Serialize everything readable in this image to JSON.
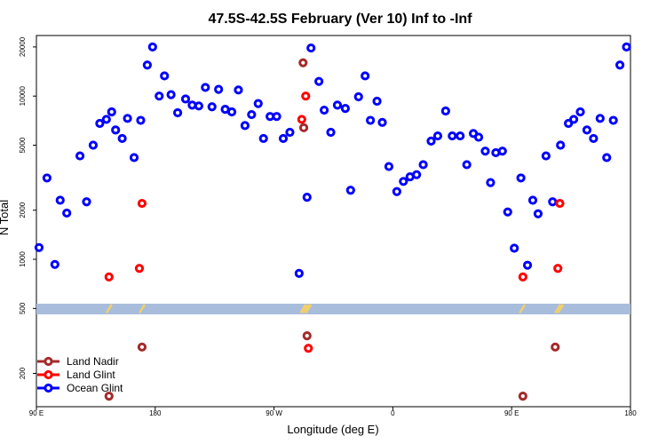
{
  "chart_data": {
    "type": "scatter",
    "title": "47.5S-42.5S February (Ver 10)   Inf to -Inf",
    "xlabel": "Longitude (deg E)",
    "ylabel": "N Total",
    "y_scale": "log",
    "grid": false,
    "legend_position": "bottom-left",
    "x_ticks": [
      {
        "value": 90,
        "label": "90 E"
      },
      {
        "value": 180,
        "label": "180"
      },
      {
        "value": 270,
        "label": "90 W"
      },
      {
        "value": 360,
        "label": "0"
      },
      {
        "value": 450,
        "label": "90 E"
      },
      {
        "value": 540,
        "label": "180"
      }
    ],
    "y_ticks": [
      {
        "value": 200,
        "label": "200"
      },
      {
        "value": 500,
        "label": "500"
      },
      {
        "value": 1000,
        "label": "1000"
      },
      {
        "value": 2000,
        "label": "2000"
      },
      {
        "value": 5000,
        "label": "5000"
      },
      {
        "value": 10000,
        "label": "10000"
      },
      {
        "value": 20000,
        "label": "20000"
      }
    ],
    "series": [
      {
        "name": "Land Nadir",
        "color": "#a52a2a",
        "points": [
          [
            145,
            145
          ],
          [
            170,
            290
          ],
          [
            292,
            16000
          ],
          [
            292.5,
            6400
          ],
          [
            295,
            340
          ],
          [
            458.5,
            145
          ],
          [
            483,
            290
          ]
        ]
      },
      {
        "name": "Land Glint",
        "color": "#ff0000",
        "points": [
          [
            145,
            780
          ],
          [
            168,
            880
          ],
          [
            170,
            2200
          ],
          [
            291,
            7200
          ],
          [
            294,
            10000
          ],
          [
            296,
            285
          ],
          [
            458.5,
            780
          ],
          [
            485,
            880
          ],
          [
            486.5,
            2200
          ]
        ]
      },
      {
        "name": "Ocean Glint",
        "color": "#0000ff",
        "points": [
          [
            92,
            1180
          ],
          [
            98,
            3150
          ],
          [
            104,
            930
          ],
          [
            108,
            2300
          ],
          [
            113,
            1920
          ],
          [
            123,
            4300
          ],
          [
            128,
            2250
          ],
          [
            133,
            5000
          ],
          [
            138,
            6800
          ],
          [
            143,
            7200
          ],
          [
            147,
            8000
          ],
          [
            150,
            6200
          ],
          [
            155,
            5500
          ],
          [
            159,
            7300
          ],
          [
            164,
            4200
          ],
          [
            169,
            7100
          ],
          [
            174,
            15500
          ],
          [
            178,
            20000
          ],
          [
            183,
            10000
          ],
          [
            187,
            13300
          ],
          [
            192,
            10200
          ],
          [
            197,
            7900
          ],
          [
            203,
            9600
          ],
          [
            208,
            8800
          ],
          [
            213,
            8700
          ],
          [
            218,
            11300
          ],
          [
            223,
            8600
          ],
          [
            228,
            11000
          ],
          [
            233,
            8300
          ],
          [
            238,
            8000
          ],
          [
            243,
            10900
          ],
          [
            248,
            6600
          ],
          [
            253,
            7700
          ],
          [
            258,
            9000
          ],
          [
            262,
            5500
          ],
          [
            267,
            7500
          ],
          [
            272,
            7500
          ],
          [
            277,
            5500
          ],
          [
            282,
            6000
          ],
          [
            289,
            820
          ],
          [
            295,
            2400
          ],
          [
            298,
            19700
          ],
          [
            304,
            12300
          ],
          [
            308,
            8200
          ],
          [
            313,
            6000
          ],
          [
            318,
            8800
          ],
          [
            324,
            8400
          ],
          [
            328,
            2650
          ],
          [
            334,
            9900
          ],
          [
            339,
            13300
          ],
          [
            343,
            7100
          ],
          [
            348,
            9300
          ],
          [
            352,
            6900
          ],
          [
            357,
            3700
          ],
          [
            363,
            2600
          ],
          [
            368,
            3000
          ],
          [
            373,
            3200
          ],
          [
            378,
            3300
          ],
          [
            383,
            3800
          ],
          [
            389,
            5300
          ],
          [
            394,
            5700
          ],
          [
            400,
            8100
          ],
          [
            405,
            5700
          ],
          [
            411,
            5700
          ],
          [
            416,
            3800
          ],
          [
            421,
            5900
          ],
          [
            425,
            5600
          ],
          [
            430,
            4600
          ],
          [
            434,
            2950
          ],
          [
            438,
            4500
          ],
          [
            443,
            4600
          ],
          [
            447,
            1950
          ],
          [
            452,
            1170
          ],
          [
            457,
            3150
          ],
          [
            462,
            920
          ],
          [
            466,
            2300
          ],
          [
            470,
            1900
          ],
          [
            476,
            4300
          ],
          [
            481,
            2250
          ],
          [
            487,
            5000
          ],
          [
            493,
            6800
          ],
          [
            497,
            7200
          ],
          [
            502,
            8000
          ],
          [
            507,
            6200
          ],
          [
            512,
            5500
          ],
          [
            517,
            7300
          ],
          [
            522,
            4200
          ],
          [
            527,
            7100
          ],
          [
            532,
            15500
          ],
          [
            537,
            20000
          ]
        ]
      }
    ],
    "yellow_markers_x": [
      145,
      170,
      292,
      294,
      296,
      458,
      485,
      487
    ]
  }
}
